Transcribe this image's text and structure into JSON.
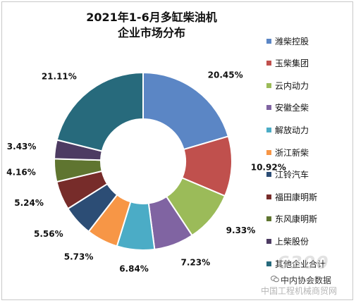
{
  "chart_data": {
    "type": "pie",
    "title": "2021年1-6月多缸柴油机",
    "subtitle": "企业市场分布",
    "categories": [
      "潍柴控股",
      "玉柴集团",
      "云内动力",
      "安徽全柴",
      "解放动力",
      "浙江新柴",
      "江铃汽车",
      "福田康明斯",
      "东风康明斯",
      "上柴股份",
      "其他企业合计"
    ],
    "values": [
      20.45,
      10.92,
      9.33,
      7.23,
      6.84,
      5.73,
      5.56,
      5.24,
      4.16,
      3.43,
      21.11
    ],
    "value_labels": [
      "20.45%",
      "10.92%",
      "9.33%",
      "7.23%",
      "6.84%",
      "5.73%",
      "5.56%",
      "5.24%",
      "4.16%",
      "3.43%",
      "21.11%"
    ],
    "colors": [
      "#5b86c5",
      "#c0504d",
      "#9bbb59",
      "#8064a2",
      "#4bacc6",
      "#f79646",
      "#2c4d75",
      "#772c2a",
      "#5f7530",
      "#4d3b62",
      "#276a7c"
    ],
    "hole": "donut",
    "legend_position": "right"
  },
  "watermark": {
    "badge": "6300",
    "source": "中内协会数据",
    "org": "中国工程机械商贸网"
  }
}
